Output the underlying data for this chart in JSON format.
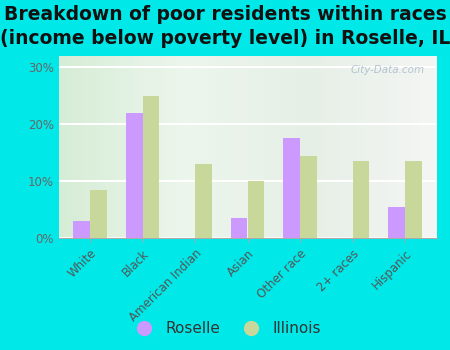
{
  "title": "Breakdown of poor residents within races\n(income below poverty level) in Roselle, IL",
  "categories": [
    "White",
    "Black",
    "American Indian",
    "Asian",
    "Other race",
    "2+ races",
    "Hispanic"
  ],
  "roselle_values": [
    3,
    22,
    0,
    3.5,
    17.5,
    0,
    5.5
  ],
  "illinois_values": [
    8.5,
    25,
    13,
    10,
    14.5,
    13.5,
    13.5
  ],
  "roselle_color": "#cc99ff",
  "illinois_color": "#c8d89a",
  "ylim": [
    0,
    32
  ],
  "yticks": [
    0,
    10,
    20,
    30
  ],
  "yticklabels": [
    "0%",
    "10%",
    "20%",
    "30%"
  ],
  "outer_bg": "#00e8e8",
  "watermark": "City-Data.com",
  "legend_labels": [
    "Roselle",
    "Illinois"
  ],
  "bar_width": 0.32,
  "title_fontsize": 13.5,
  "tick_fontsize": 8.5,
  "legend_fontsize": 11
}
